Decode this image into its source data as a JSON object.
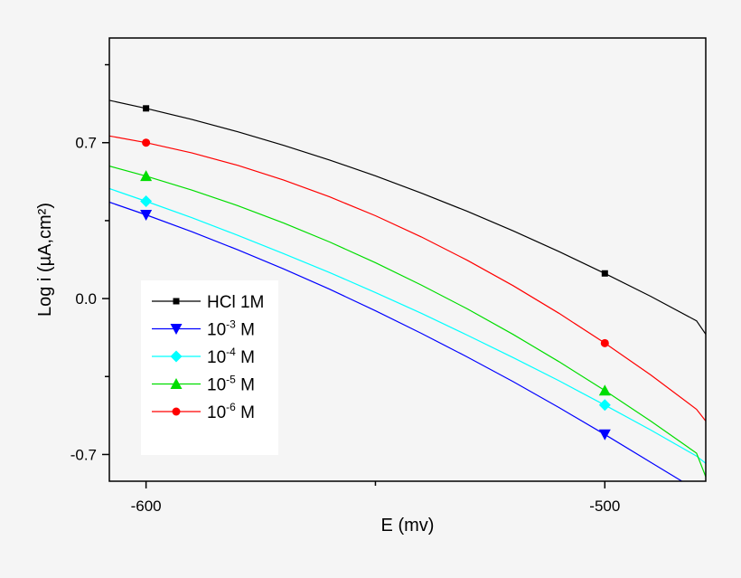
{
  "chart_data": {
    "type": "line",
    "title": "",
    "xlabel": "E (mv)",
    "ylabel": "Log i (µA,cm²)",
    "xlim": [
      -608,
      -478
    ],
    "ylim": [
      -0.82,
      1.17
    ],
    "x_ticks": [
      -600,
      -500
    ],
    "x_tick_labels": [
      "-600",
      "-500"
    ],
    "x_minor_ticks": [
      -550
    ],
    "y_ticks": [
      0.7,
      0.0,
      -0.7
    ],
    "y_tick_labels": [
      "0.7",
      "0.0",
      "-0.7"
    ],
    "y_minor_ticks": [
      1.05,
      0.35,
      -0.35
    ],
    "grid": false,
    "legend_position": "bottom-left",
    "marker_x": [
      -600,
      -500
    ],
    "x": [
      -608,
      -600,
      -590,
      -580,
      -570,
      -560,
      -550,
      -540,
      -530,
      -520,
      -510,
      -500,
      -490,
      -480,
      -478
    ],
    "series": [
      {
        "name": "HCl 1M",
        "base": "",
        "exp": "",
        "color": "#000000",
        "marker": "square",
        "values": [
          0.89,
          0.854,
          0.804,
          0.749,
          0.688,
          0.622,
          0.551,
          0.474,
          0.392,
          0.304,
          0.211,
          0.113,
          0.01,
          -0.1,
          -0.16
        ]
      },
      {
        "name": "10-3 M",
        "base": "10",
        "exp": "-3",
        "unit": " M",
        "color": "#0000ff",
        "marker": "triangle-down",
        "values": [
          0.433,
          0.376,
          0.3,
          0.219,
          0.133,
          0.042,
          -0.055,
          -0.156,
          -0.262,
          -0.373,
          -0.489,
          -0.61,
          -0.735,
          -0.86,
          -0.89
        ]
      },
      {
        "name": "10-4 M",
        "base": "10",
        "exp": "-4",
        "unit": " M",
        "color": "#00ffff",
        "marker": "diamond",
        "values": [
          0.494,
          0.437,
          0.363,
          0.284,
          0.202,
          0.117,
          0.027,
          -0.066,
          -0.164,
          -0.265,
          -0.369,
          -0.478,
          -0.59,
          -0.707,
          -0.74
        ]
      },
      {
        "name": "10-5 M",
        "base": "10",
        "exp": "-5",
        "unit": " M",
        "color": "#00dd00",
        "marker": "triangle-up",
        "values": [
          0.595,
          0.55,
          0.487,
          0.417,
          0.339,
          0.254,
          0.161,
          0.061,
          -0.046,
          -0.161,
          -0.283,
          -0.413,
          -0.55,
          -0.694,
          -0.8
        ]
      },
      {
        "name": "10-6 M",
        "base": "10",
        "exp": "-6",
        "unit": " M",
        "color": "#ff0000",
        "marker": "circle",
        "values": [
          0.73,
          0.7,
          0.654,
          0.598,
          0.532,
          0.457,
          0.372,
          0.277,
          0.172,
          0.058,
          -0.066,
          -0.2,
          -0.343,
          -0.497,
          -0.55
        ]
      }
    ],
    "legend_order": [
      0,
      1,
      2,
      3,
      4
    ]
  }
}
